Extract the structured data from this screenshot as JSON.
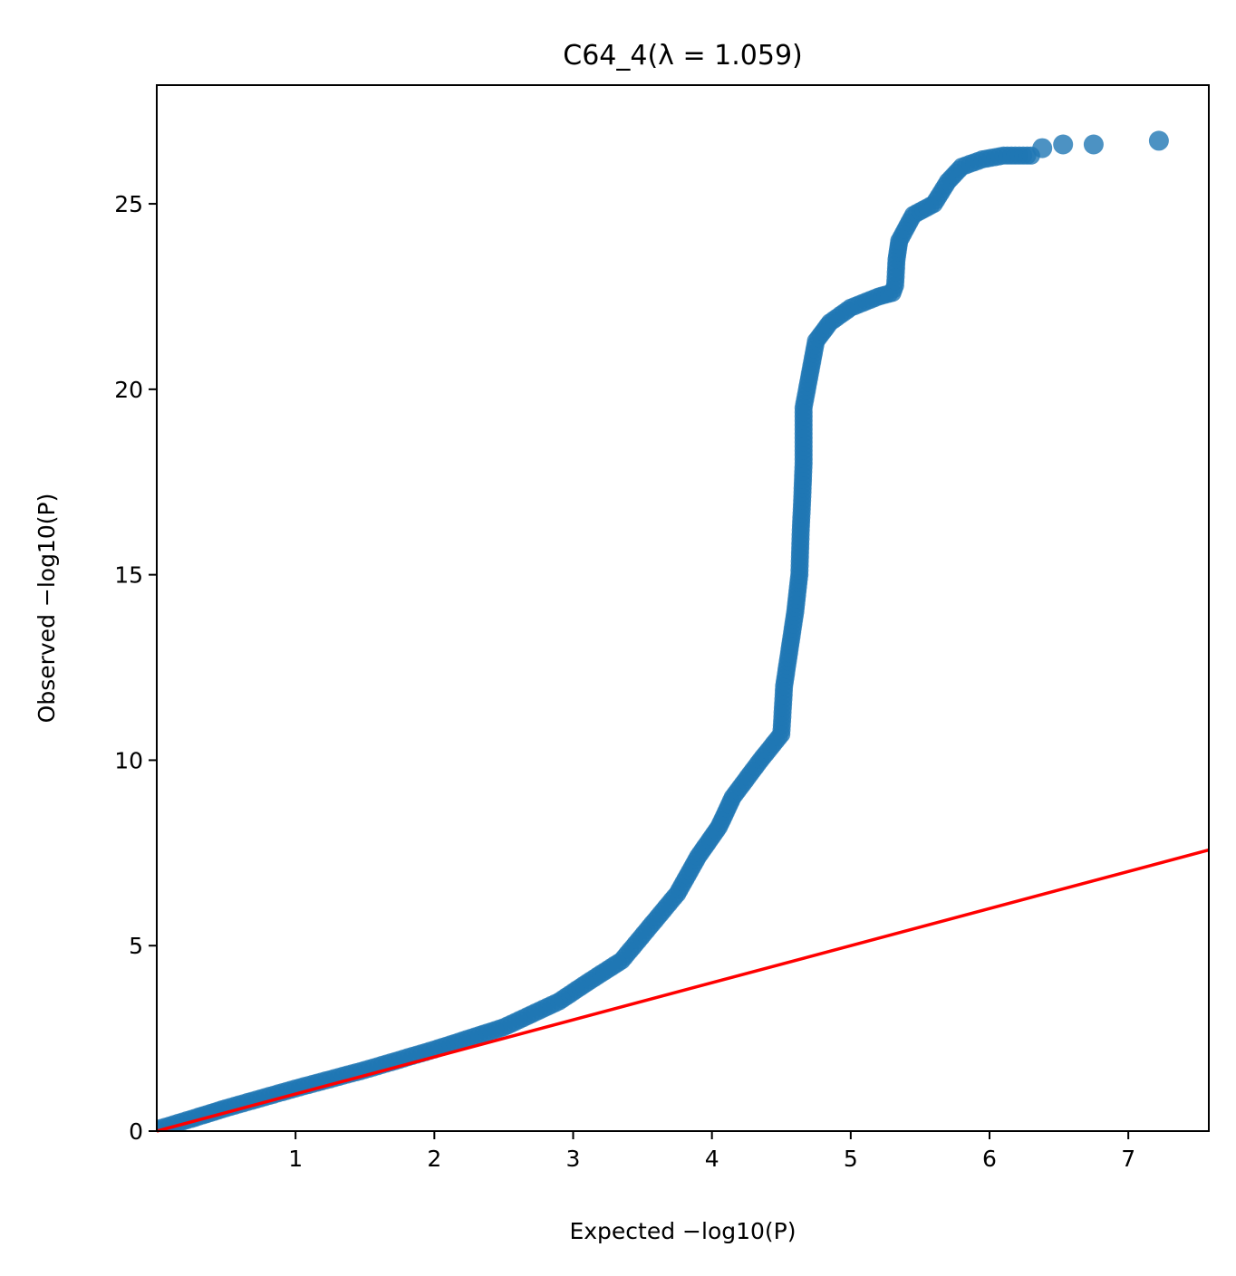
{
  "chart_data": {
    "type": "scatter",
    "title": "C64_4(λ = 1.059)",
    "xlabel": "Expected −log10(P)",
    "ylabel": "Observed −log10(P)",
    "xlim": [
      0.0,
      7.58
    ],
    "ylim": [
      0,
      28.2
    ],
    "x_ticks": [
      1,
      2,
      3,
      4,
      5,
      6,
      7
    ],
    "x_tick_labels": [
      "1",
      "2",
      "3",
      "4",
      "5",
      "6",
      "7"
    ],
    "y_ticks": [
      0,
      5,
      10,
      15,
      20,
      25
    ],
    "y_tick_labels": [
      "0",
      "5",
      "10",
      "15",
      "20",
      "25"
    ],
    "grid": false,
    "legend": "none",
    "point_color": "#1f77b4",
    "reference_line_color": "#ff0000",
    "reference_line": {
      "slope": 1,
      "intercept": 0
    },
    "qq_curve": [
      [
        0.0,
        0.05
      ],
      [
        0.25,
        0.33
      ],
      [
        0.5,
        0.62
      ],
      [
        1.0,
        1.15
      ],
      [
        1.5,
        1.65
      ],
      [
        2.0,
        2.2
      ],
      [
        2.5,
        2.8
      ],
      [
        2.9,
        3.5
      ],
      [
        3.1,
        4.0
      ],
      [
        3.35,
        4.6
      ],
      [
        3.55,
        5.5
      ],
      [
        3.75,
        6.4
      ],
      [
        3.9,
        7.4
      ],
      [
        4.05,
        8.2
      ],
      [
        4.15,
        9.0
      ],
      [
        4.35,
        10.0
      ],
      [
        4.5,
        10.7
      ],
      [
        4.52,
        12.0
      ],
      [
        4.56,
        13.0
      ],
      [
        4.6,
        14.0
      ],
      [
        4.63,
        15.0
      ],
      [
        4.64,
        16.2
      ],
      [
        4.65,
        17.0
      ],
      [
        4.66,
        18.0
      ],
      [
        4.66,
        19.5
      ],
      [
        4.7,
        20.3
      ],
      [
        4.75,
        21.3
      ],
      [
        4.85,
        21.8
      ],
      [
        5.0,
        22.2
      ],
      [
        5.2,
        22.5
      ],
      [
        5.3,
        22.6
      ],
      [
        5.32,
        22.8
      ],
      [
        5.33,
        23.5
      ],
      [
        5.35,
        24.0
      ],
      [
        5.45,
        24.7
      ],
      [
        5.6,
        25.0
      ],
      [
        5.7,
        25.6
      ],
      [
        5.8,
        26.0
      ],
      [
        5.95,
        26.2
      ],
      [
        6.1,
        26.3
      ],
      [
        6.3,
        26.3
      ]
    ],
    "top_points": [
      {
        "x": 6.38,
        "y": 26.5
      },
      {
        "x": 6.53,
        "y": 26.6
      },
      {
        "x": 6.75,
        "y": 26.6
      },
      {
        "x": 7.22,
        "y": 26.7
      }
    ]
  }
}
